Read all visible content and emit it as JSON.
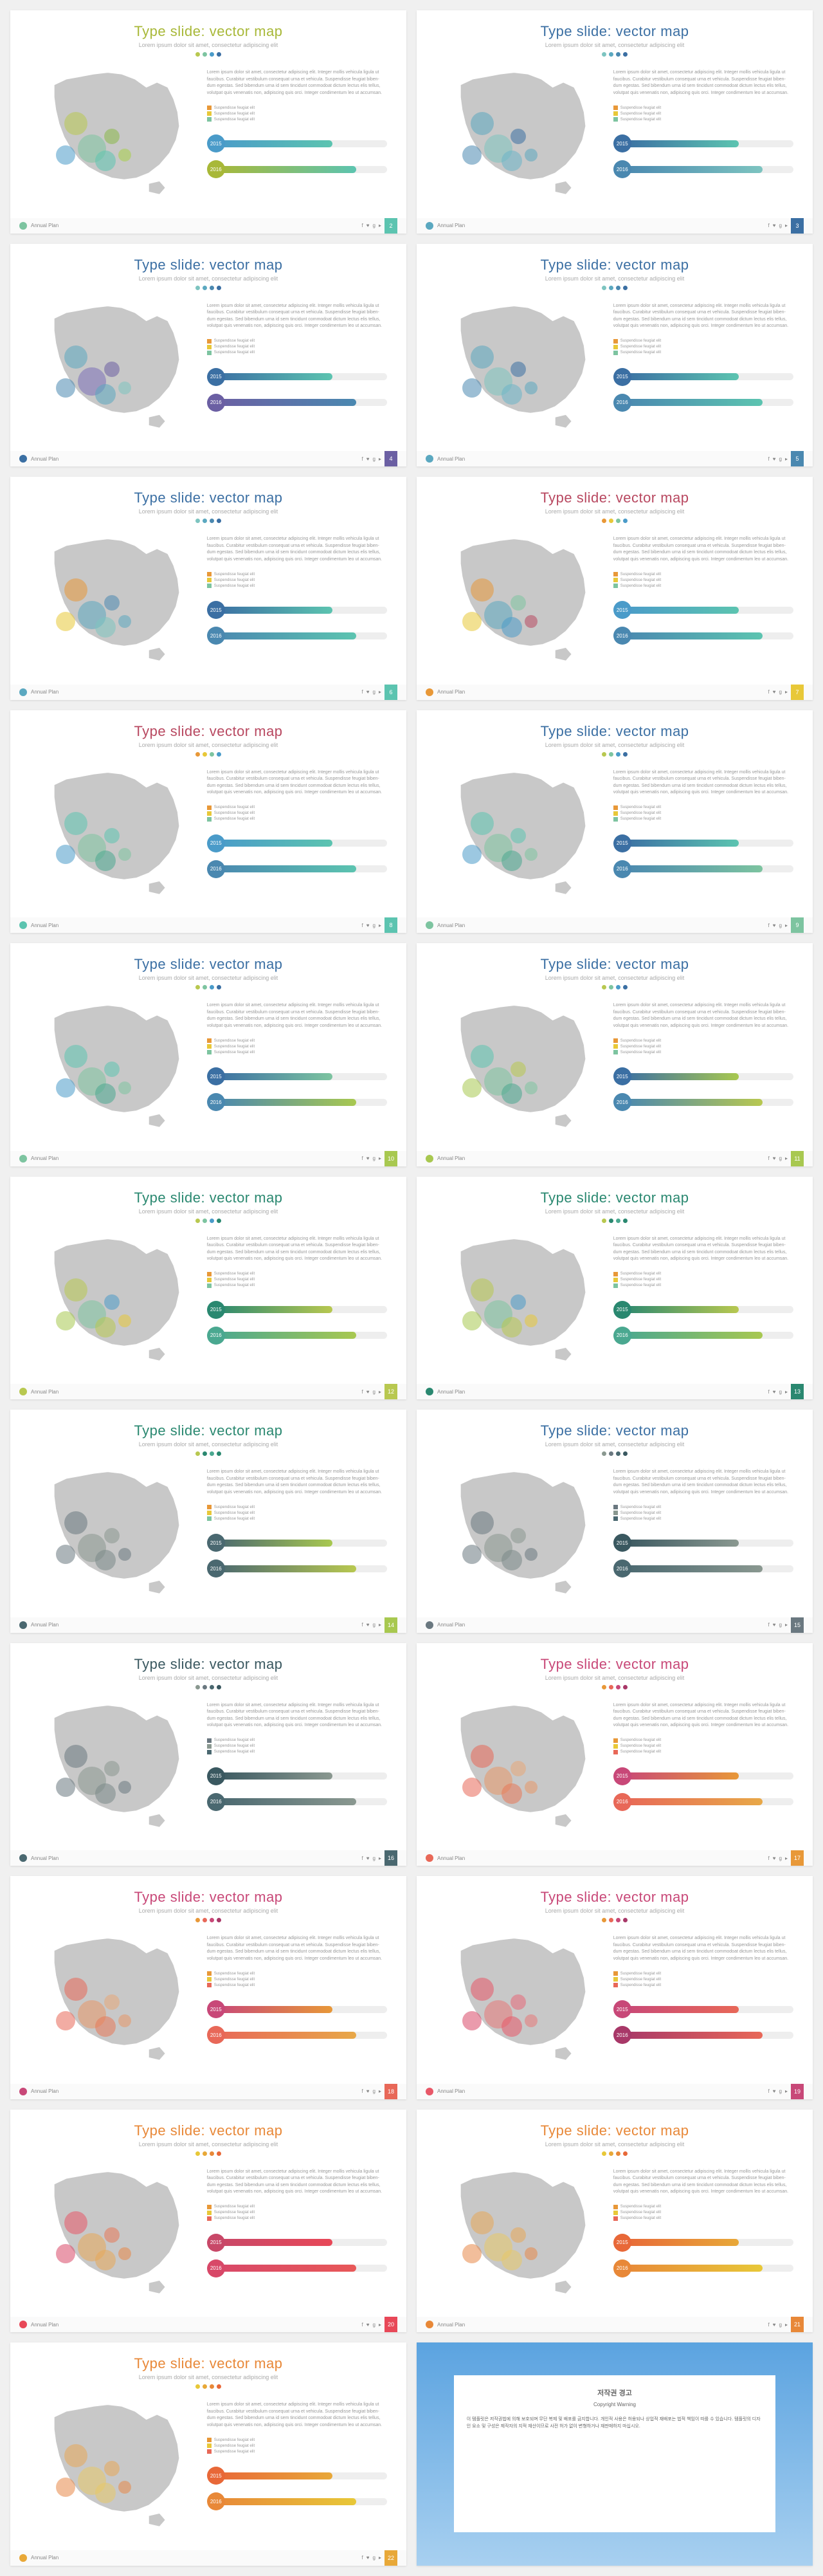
{
  "common": {
    "title": "Type slide: vector map",
    "subtitle": "Lorem ipsum dolor sit amet, consectetur adipiscing elit",
    "lorem": "Lorem ipsum dolor sit amet, consectetur adipiscing elit. Integer mollis vehicula ligula ut faucibus. Curabitur vestibulum consequat urna et vehicula. Suspendisse feugiat biben- dum egestas. Sed bibendum urna id sem tincidunt commodoat dictum lectus elis tellus, volutpat quis venenatis non, adipiscing quis orci. Integer condimentum leo ut accumsan.",
    "legend": [
      "Suspendisse feugiat elit",
      "Suspendisse feugiat elit",
      "Suspendisse feugiat elit"
    ],
    "footer": "Annual Plan",
    "year1": "2015",
    "year2": "2016",
    "bar1_pct": 68,
    "bar2_pct": 82,
    "map_color": "#c8c8c8",
    "bubbles": [
      {
        "x": 28,
        "y": 38,
        "r": 36
      },
      {
        "x": 38,
        "y": 54,
        "r": 44
      },
      {
        "x": 22,
        "y": 58,
        "r": 30
      },
      {
        "x": 50,
        "y": 46,
        "r": 24
      },
      {
        "x": 46,
        "y": 62,
        "r": 32
      },
      {
        "x": 58,
        "y": 58,
        "r": 20
      }
    ]
  },
  "slides": [
    {
      "n": 2,
      "title_c": "#a8b838",
      "accent": "#a8b838",
      "dot_cs": [
        "#b8c850",
        "#7dc4a0",
        "#4a9bc9",
        "#3b6fa3"
      ],
      "leg_cs": [
        "#e89838",
        "#e8c838",
        "#7dc4a0"
      ],
      "bar1_g": [
        "#4a9bc9",
        "#5cc4b0"
      ],
      "bar2_g": [
        "#a8b838",
        "#5cc4b0"
      ],
      "bub_cs": [
        "#b8c850",
        "#7dc4a0",
        "#4a9bc9",
        "#8bb848",
        "#5cc4b0",
        "#a8d048"
      ],
      "page_c": "#5cc4b0",
      "fdot": "#7dc4a0"
    },
    {
      "n": 3,
      "title_c": "#3b6fa3",
      "accent": "#3b6fa3",
      "dot_cs": [
        "#7dc4c0",
        "#5ba8c0",
        "#4a88b0",
        "#3b6fa3"
      ],
      "leg_cs": [
        "#e89838",
        "#e8c838",
        "#7dc4a0"
      ],
      "bar1_g": [
        "#3b6fa3",
        "#5cc4b0"
      ],
      "bar2_g": [
        "#4a88b0",
        "#7dc4c0"
      ],
      "bub_cs": [
        "#5ba8c0",
        "#7dc4c0",
        "#4a88b0",
        "#3b6fa3",
        "#6bb4c8",
        "#5ba8c0"
      ],
      "page_c": "#3b6fa3",
      "fdot": "#5ba8c0"
    },
    {
      "n": 4,
      "title_c": "#3b6fa3",
      "accent": "#3b6fa3",
      "dot_cs": [
        "#7dc4c0",
        "#5ba8c0",
        "#4a88b0",
        "#3b6fa3"
      ],
      "leg_cs": [
        "#e89838",
        "#e8c838",
        "#7dc4a0"
      ],
      "bar1_g": [
        "#3b6fa3",
        "#5cc4b0"
      ],
      "bar2_g": [
        "#6b5fa3",
        "#4a88b0"
      ],
      "bub_cs": [
        "#5ba8c0",
        "#7b6fb8",
        "#4a88b0",
        "#6b5fa3",
        "#5ba8c0",
        "#7dc4c0"
      ],
      "page_c": "#6b5fa3",
      "fdot": "#3b6fa3"
    },
    {
      "n": 5,
      "title_c": "#3b6fa3",
      "accent": "#3b6fa3",
      "dot_cs": [
        "#7dc4c0",
        "#5ba8c0",
        "#4a88b0",
        "#3b6fa3"
      ],
      "leg_cs": [
        "#e89838",
        "#e8c838",
        "#7dc4a0"
      ],
      "bar1_g": [
        "#3b6fa3",
        "#5cc4b0"
      ],
      "bar2_g": [
        "#4a88b0",
        "#5cc4b0"
      ],
      "bub_cs": [
        "#5ba8c0",
        "#7dc4c0",
        "#4a88b0",
        "#3b6fa3",
        "#6bb4c8",
        "#5ba8c0"
      ],
      "page_c": "#4a88b0",
      "fdot": "#5ba8c0"
    },
    {
      "n": 6,
      "title_c": "#3b6fa3",
      "accent": "#3b6fa3",
      "dot_cs": [
        "#7dc4c0",
        "#5ba8c0",
        "#4a88b0",
        "#3b6fa3"
      ],
      "leg_cs": [
        "#e89838",
        "#e8c838",
        "#7dc4a0"
      ],
      "bar1_g": [
        "#3b6fa3",
        "#5cc4b0"
      ],
      "bar2_g": [
        "#4a88b0",
        "#5cc4b0"
      ],
      "bub_cs": [
        "#e89838",
        "#5ba8c0",
        "#e8c838",
        "#4a88b0",
        "#7dc4c0",
        "#5ba8c0"
      ],
      "page_c": "#5cc4b0",
      "fdot": "#5ba8c0"
    },
    {
      "n": 7,
      "title_c": "#b84860",
      "accent": "#b84860",
      "dot_cs": [
        "#e89838",
        "#e8c838",
        "#7dc4a0",
        "#4a9bc9"
      ],
      "leg_cs": [
        "#e89838",
        "#e8c838",
        "#7dc4a0"
      ],
      "bar1_g": [
        "#4a9bc9",
        "#5cc4b0"
      ],
      "bar2_g": [
        "#4a88b0",
        "#5cc4b0"
      ],
      "bub_cs": [
        "#e89838",
        "#5ba8c0",
        "#e8c838",
        "#7dc4a0",
        "#4a9bc9",
        "#b84860"
      ],
      "page_c": "#e8c838",
      "fdot": "#e89838"
    },
    {
      "n": 8,
      "title_c": "#b84860",
      "accent": "#b84860",
      "dot_cs": [
        "#e89838",
        "#e8c838",
        "#7dc4a0",
        "#4a9bc9"
      ],
      "leg_cs": [
        "#e89838",
        "#e8c838",
        "#7dc4a0"
      ],
      "bar1_g": [
        "#4a9bc9",
        "#5cc4b0"
      ],
      "bar2_g": [
        "#4a88b0",
        "#5cc4b0"
      ],
      "bub_cs": [
        "#5cc4b0",
        "#7dc4a0",
        "#4a9bc9",
        "#5cc4b0",
        "#4aa890",
        "#7dc4a0"
      ],
      "page_c": "#5cc4b0",
      "fdot": "#5cc4b0"
    },
    {
      "n": 9,
      "title_c": "#3b6fa3",
      "accent": "#3b6fa3",
      "dot_cs": [
        "#b8c850",
        "#7dc4a0",
        "#4a9bc9",
        "#3b6fa3"
      ],
      "leg_cs": [
        "#e89838",
        "#e8c838",
        "#7dc4a0"
      ],
      "bar1_g": [
        "#3b6fa3",
        "#5cc4b0"
      ],
      "bar2_g": [
        "#4a88b0",
        "#7dc4a0"
      ],
      "bub_cs": [
        "#5cc4b0",
        "#7dc4a0",
        "#4a9bc9",
        "#5cc4b0",
        "#4aa890",
        "#7dc4a0"
      ],
      "page_c": "#7dc4a0",
      "fdot": "#7dc4a0"
    },
    {
      "n": 10,
      "title_c": "#3b6fa3",
      "accent": "#3b6fa3",
      "dot_cs": [
        "#b8c850",
        "#7dc4a0",
        "#4a9bc9",
        "#3b6fa3"
      ],
      "leg_cs": [
        "#e89838",
        "#e8c838",
        "#7dc4a0"
      ],
      "bar1_g": [
        "#3b6fa3",
        "#7dc4a0"
      ],
      "bar2_g": [
        "#4a88b0",
        "#a8c850"
      ],
      "bub_cs": [
        "#5cc4b0",
        "#7dc4a0",
        "#4a9bc9",
        "#5cc4b0",
        "#4aa890",
        "#7dc4a0"
      ],
      "page_c": "#a8c850",
      "fdot": "#7dc4a0"
    },
    {
      "n": 11,
      "title_c": "#3b6fa3",
      "accent": "#3b6fa3",
      "dot_cs": [
        "#b8c850",
        "#7dc4a0",
        "#4a9bc9",
        "#3b6fa3"
      ],
      "leg_cs": [
        "#e89838",
        "#e8c838",
        "#7dc4a0"
      ],
      "bar1_g": [
        "#3b6fa3",
        "#a8c850"
      ],
      "bar2_g": [
        "#4a88b0",
        "#b8c850"
      ],
      "bub_cs": [
        "#5cc4b0",
        "#7dc4a0",
        "#a8c850",
        "#b8c850",
        "#4aa890",
        "#7dc4a0"
      ],
      "page_c": "#a8c850",
      "fdot": "#a8c850"
    },
    {
      "n": 12,
      "title_c": "#2a8870",
      "accent": "#2a8870",
      "dot_cs": [
        "#b8c850",
        "#7dc4a0",
        "#4a9bc9",
        "#2a8870"
      ],
      "leg_cs": [
        "#e89838",
        "#e8c838",
        "#7dc4a0"
      ],
      "bar1_g": [
        "#2a8870",
        "#b8c850"
      ],
      "bar2_g": [
        "#4aa890",
        "#a8c850"
      ],
      "bub_cs": [
        "#b8c850",
        "#7dc4a0",
        "#a8c850",
        "#4a9bc9",
        "#b8c850",
        "#e8c838"
      ],
      "page_c": "#b8c850",
      "fdot": "#b8c850"
    },
    {
      "n": 13,
      "title_c": "#2a8870",
      "accent": "#2a8870",
      "dot_cs": [
        "#b8c850",
        "#2a8870",
        "#4aa890",
        "#2a8870"
      ],
      "leg_cs": [
        "#e89838",
        "#e8c838",
        "#7dc4a0"
      ],
      "bar1_g": [
        "#2a8870",
        "#b8c850"
      ],
      "bar2_g": [
        "#4aa890",
        "#a8c850"
      ],
      "bub_cs": [
        "#b8c850",
        "#7dc4a0",
        "#a8c850",
        "#4a9bc9",
        "#b8c850",
        "#e8c838"
      ],
      "page_c": "#2a8870",
      "fdot": "#2a8870"
    },
    {
      "n": 14,
      "title_c": "#2a8870",
      "accent": "#2a8870",
      "dot_cs": [
        "#b8c850",
        "#2a8870",
        "#4aa890",
        "#2a8870"
      ],
      "leg_cs": [
        "#e89838",
        "#e8c838",
        "#7dc4a0"
      ],
      "bar1_g": [
        "#4a6870",
        "#a8c850"
      ],
      "bar2_g": [
        "#4a6870",
        "#b8c850"
      ],
      "bub_cs": [
        "#6a7880",
        "#8a9890",
        "#6a7880",
        "#8a9890",
        "#7a8888",
        "#6a7880"
      ],
      "page_c": "#a8c850",
      "fdot": "#4a6870"
    },
    {
      "n": 15,
      "title_c": "#3b6fa3",
      "accent": "#3b6fa3",
      "dot_cs": [
        "#8a9890",
        "#6a7880",
        "#4a6870",
        "#3a5860"
      ],
      "leg_cs": [
        "#6a7880",
        "#8a9890",
        "#4a6870"
      ],
      "bar1_g": [
        "#3a5860",
        "#8a9890"
      ],
      "bar2_g": [
        "#4a6870",
        "#8a9890"
      ],
      "bub_cs": [
        "#6a7880",
        "#8a9890",
        "#6a7880",
        "#8a9890",
        "#7a8888",
        "#6a7880"
      ],
      "page_c": "#6a7880",
      "fdot": "#6a7880"
    },
    {
      "n": 16,
      "title_c": "#3a5860",
      "accent": "#3a5860",
      "dot_cs": [
        "#8a9890",
        "#6a7880",
        "#4a6870",
        "#3a5860"
      ],
      "leg_cs": [
        "#6a7880",
        "#8a9890",
        "#4a6870"
      ],
      "bar1_g": [
        "#3a5860",
        "#8a9890"
      ],
      "bar2_g": [
        "#4a6870",
        "#8a9890"
      ],
      "bub_cs": [
        "#6a7880",
        "#8a9890",
        "#6a7880",
        "#8a9890",
        "#7a8888",
        "#6a7880"
      ],
      "page_c": "#4a6870",
      "fdot": "#4a6870"
    },
    {
      "n": 17,
      "title_c": "#c84878",
      "accent": "#c84878",
      "dot_cs": [
        "#e89838",
        "#e86858",
        "#c84878",
        "#a83868"
      ],
      "leg_cs": [
        "#e89838",
        "#e8c838",
        "#e86858"
      ],
      "bar1_g": [
        "#c84878",
        "#e89838"
      ],
      "bar2_g": [
        "#e86858",
        "#e8a848"
      ],
      "bub_cs": [
        "#e86858",
        "#e89868",
        "#e86858",
        "#e8a878",
        "#e87858",
        "#e89868"
      ],
      "page_c": "#e89838",
      "fdot": "#e86858"
    },
    {
      "n": 18,
      "title_c": "#c84878",
      "accent": "#c84878",
      "dot_cs": [
        "#e89838",
        "#e86858",
        "#c84878",
        "#a83868"
      ],
      "leg_cs": [
        "#e89838",
        "#e8c838",
        "#e86858"
      ],
      "bar1_g": [
        "#c84878",
        "#e89838"
      ],
      "bar2_g": [
        "#e86858",
        "#e8a848"
      ],
      "bub_cs": [
        "#e86858",
        "#e89868",
        "#e86858",
        "#e8a878",
        "#e87858",
        "#e89868"
      ],
      "page_c": "#e86858",
      "fdot": "#c84878"
    },
    {
      "n": 19,
      "title_c": "#c84878",
      "accent": "#c84878",
      "dot_cs": [
        "#e89838",
        "#e86858",
        "#c84878",
        "#a83868"
      ],
      "leg_cs": [
        "#e89838",
        "#e8c838",
        "#e86858"
      ],
      "bar1_g": [
        "#c84878",
        "#e86858"
      ],
      "bar2_g": [
        "#a83868",
        "#e86858"
      ],
      "bub_cs": [
        "#e85868",
        "#e87878",
        "#d84868",
        "#e86878",
        "#e85868",
        "#e87878"
      ],
      "page_c": "#c84878",
      "fdot": "#e85868"
    },
    {
      "n": 20,
      "title_c": "#e88838",
      "accent": "#e88838",
      "dot_cs": [
        "#e8c838",
        "#e8a838",
        "#e88838",
        "#e86838"
      ],
      "leg_cs": [
        "#e89838",
        "#e8c838",
        "#e86858"
      ],
      "bar1_g": [
        "#c84868",
        "#e84858"
      ],
      "bar2_g": [
        "#d84868",
        "#e85858"
      ],
      "bub_cs": [
        "#e85868",
        "#e8a858",
        "#d84868",
        "#e87858",
        "#e8a858",
        "#e88848"
      ],
      "page_c": "#e84858",
      "fdot": "#e84858"
    },
    {
      "n": 21,
      "title_c": "#e88838",
      "accent": "#e88838",
      "dot_cs": [
        "#e8c838",
        "#e8a838",
        "#e88838",
        "#e86838"
      ],
      "leg_cs": [
        "#e89838",
        "#e8c838",
        "#e86858"
      ],
      "bar1_g": [
        "#e86838",
        "#e8a838"
      ],
      "bar2_g": [
        "#e88838",
        "#e8c838"
      ],
      "bub_cs": [
        "#e8a858",
        "#e8c868",
        "#e88848",
        "#e8a858",
        "#e8c868",
        "#e88848"
      ],
      "page_c": "#e88838",
      "fdot": "#e88838"
    },
    {
      "n": 22,
      "title_c": "#e88838",
      "accent": "#e88838",
      "dot_cs": [
        "#e8c838",
        "#e8a838",
        "#e88838",
        "#e86838"
      ],
      "leg_cs": [
        "#e89838",
        "#e8c838",
        "#e86858"
      ],
      "bar1_g": [
        "#e86838",
        "#e8a838"
      ],
      "bar2_g": [
        "#e88838",
        "#e8c838"
      ],
      "bub_cs": [
        "#e8a858",
        "#e8c868",
        "#e88848",
        "#e8a858",
        "#e8c868",
        "#e88848"
      ],
      "page_c": "#e8a838",
      "fdot": "#e8a838"
    }
  ],
  "copyright": {
    "title": "저작권 경고",
    "sub": "Copyright Warning",
    "body": "이 템플릿은 저작권법에 의해 보호되며 무단 복제 및 배포를 금지합니다. 개인적 사용은 허용되나 상업적 재배포는 법적 책임이 따를 수 있습니다. 템플릿의 디자인 요소 및 구성은 제작자의 지적 재산이므로 사전 허가 없이 변형하거나 재판매하지 마십시오."
  }
}
